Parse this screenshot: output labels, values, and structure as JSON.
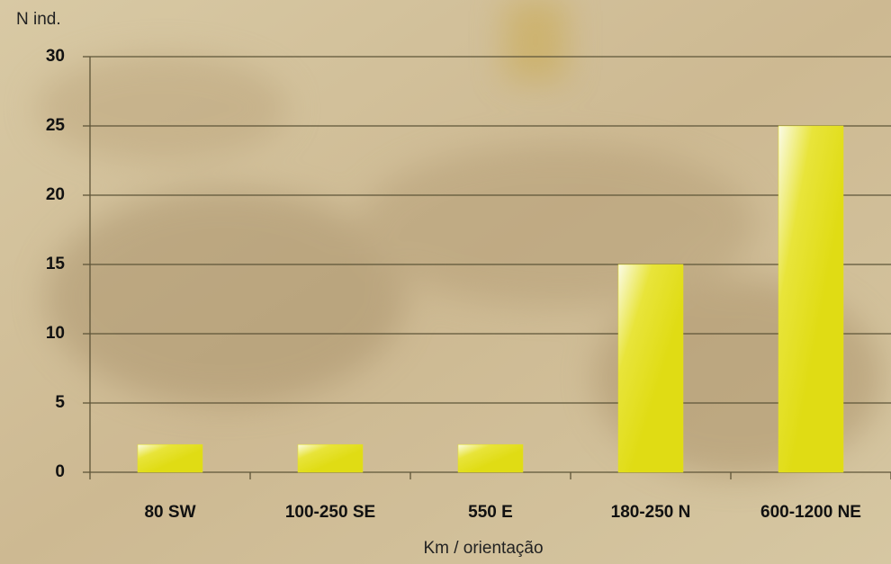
{
  "chart_data": {
    "type": "bar",
    "y_label": "N ind.",
    "x_label": "Km / orientação",
    "categories": [
      "80 SW",
      "100-250 SE",
      "550 E",
      "180-250 N",
      "600-1200 NE"
    ],
    "values": [
      2,
      2,
      2,
      15,
      25
    ],
    "color": "#e4e01a",
    "ylim": [
      0,
      30
    ],
    "yticks": [
      0,
      5,
      10,
      15,
      20,
      25,
      30
    ],
    "grid": true
  }
}
